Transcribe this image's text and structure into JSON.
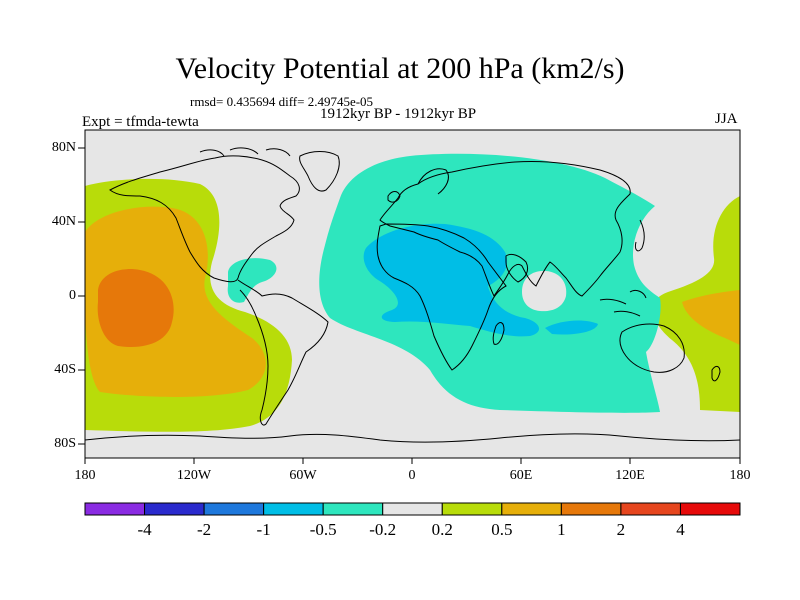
{
  "title": "Velocity Potential at 200 hPa (km2/s)",
  "stats_text": "rmsd= 0.435694  diff= 2.49745e-05",
  "experiment_label": "Expt = tfmda-tewta",
  "period_label": "1912kyr BP - 1912kyr BP",
  "season_label": "JJA",
  "lat_ticks": [
    "80N",
    "40N",
    "0",
    "40S",
    "80S"
  ],
  "lon_ticks": [
    "180",
    "120W",
    "60W",
    "0",
    "60E",
    "120E",
    "180"
  ],
  "colorbar": {
    "colors": [
      "#8a2be2",
      "#2a2acd",
      "#1e78dc",
      "#00bee6",
      "#2ee6be",
      "#e6e6e6",
      "#b8dc0a",
      "#e6af0a",
      "#e6780a",
      "#e6461e",
      "#e60a0a"
    ],
    "labels": [
      "-4",
      "-2",
      "-1",
      "-0.5",
      "-0.2",
      "0.2",
      "0.5",
      "1",
      "2",
      "4"
    ]
  },
  "colors": {
    "ocean_background": "#e6e6e6",
    "coastline": "#000000"
  }
}
